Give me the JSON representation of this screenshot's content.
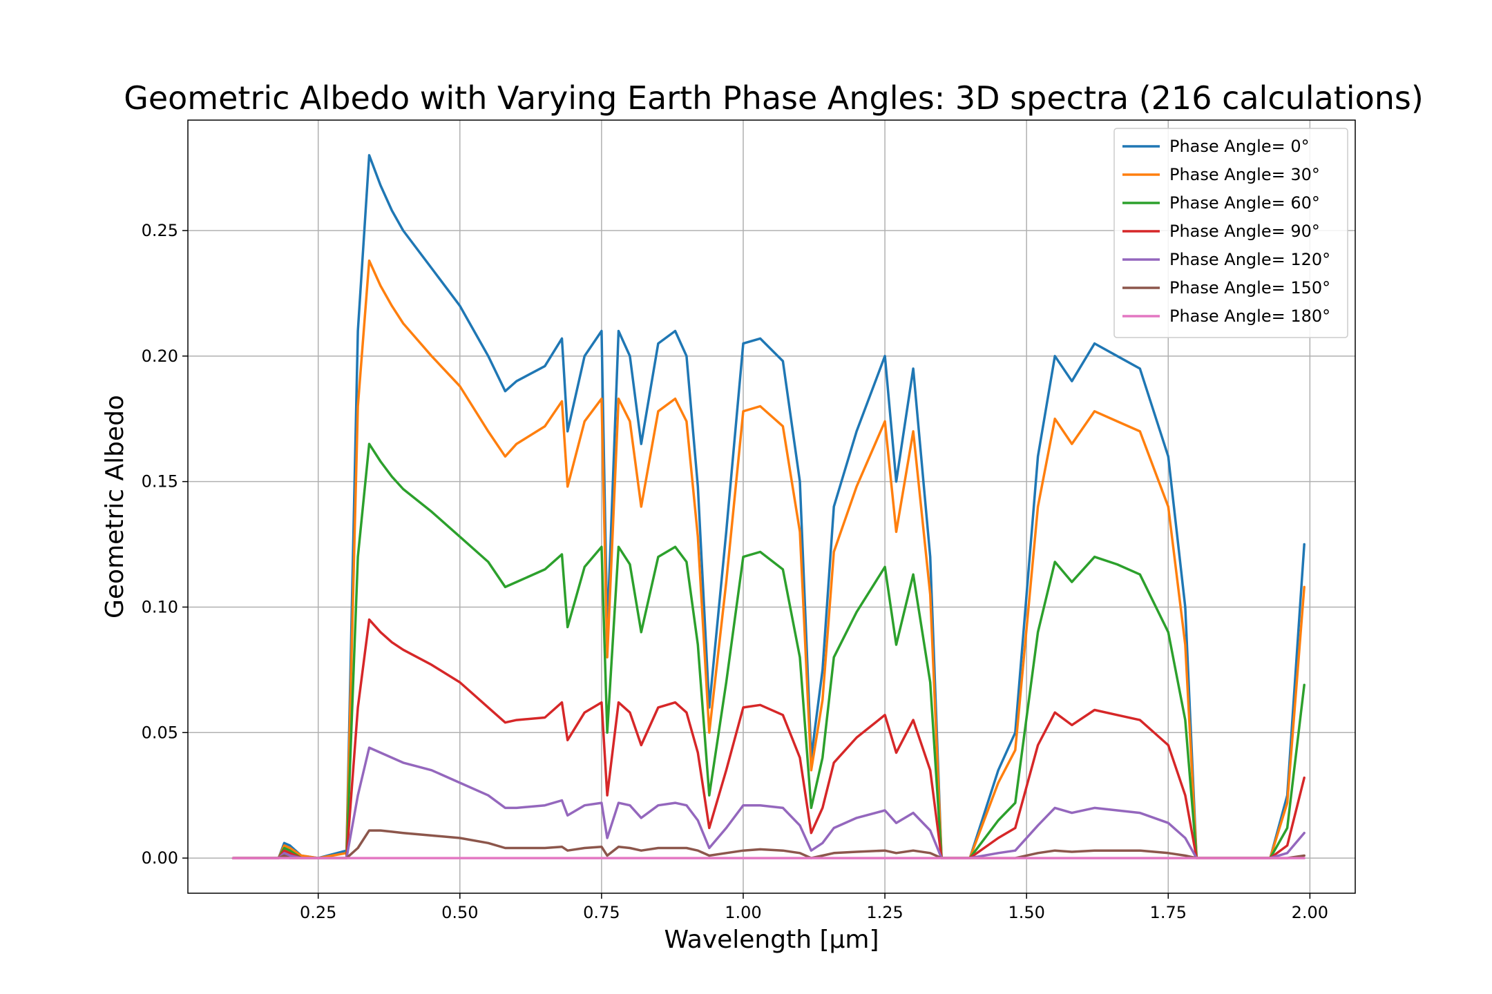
{
  "chart_data": {
    "type": "line",
    "title": "Geometric Albedo with Varying Earth Phase Angles: 3D spectra (216 calculations)",
    "xlabel": "Wavelength [μm]",
    "ylabel": "Geometric Albedo",
    "xlim": [
      0.02,
      2.08
    ],
    "ylim": [
      -0.014,
      0.294
    ],
    "xticks": [
      0.25,
      0.5,
      0.75,
      1.0,
      1.25,
      1.5,
      1.75,
      2.0
    ],
    "xtick_labels": [
      "0.25",
      "0.50",
      "0.75",
      "1.00",
      "1.25",
      "1.50",
      "1.75",
      "2.00"
    ],
    "yticks": [
      0.0,
      0.05,
      0.1,
      0.15,
      0.2,
      0.25
    ],
    "ytick_labels": [
      "0.00",
      "0.05",
      "0.10",
      "0.15",
      "0.20",
      "0.25"
    ],
    "grid": true,
    "legend_position": "top-right",
    "x": [
      0.1,
      0.18,
      0.19,
      0.2,
      0.22,
      0.25,
      0.3,
      0.32,
      0.34,
      0.36,
      0.38,
      0.4,
      0.45,
      0.5,
      0.55,
      0.58,
      0.6,
      0.65,
      0.68,
      0.69,
      0.72,
      0.75,
      0.76,
      0.78,
      0.8,
      0.82,
      0.85,
      0.88,
      0.9,
      0.92,
      0.94,
      0.97,
      1.0,
      1.03,
      1.07,
      1.1,
      1.12,
      1.14,
      1.16,
      1.2,
      1.25,
      1.27,
      1.3,
      1.33,
      1.35,
      1.4,
      1.45,
      1.48,
      1.52,
      1.55,
      1.58,
      1.62,
      1.66,
      1.7,
      1.75,
      1.78,
      1.8,
      1.82,
      1.85,
      1.9,
      1.93,
      1.96,
      1.99
    ],
    "series": [
      {
        "name": "Phase Angle= 0°",
        "color": "#1f77b4",
        "values": [
          0.0,
          0.0,
          0.006,
          0.005,
          0.001,
          0.0,
          0.003,
          0.21,
          0.28,
          0.268,
          0.258,
          0.25,
          0.235,
          0.22,
          0.2,
          0.186,
          0.19,
          0.196,
          0.207,
          0.17,
          0.2,
          0.21,
          0.09,
          0.21,
          0.2,
          0.165,
          0.205,
          0.21,
          0.2,
          0.148,
          0.06,
          0.13,
          0.205,
          0.207,
          0.198,
          0.15,
          0.04,
          0.075,
          0.14,
          0.17,
          0.2,
          0.15,
          0.195,
          0.12,
          0.0,
          0.0,
          0.035,
          0.05,
          0.16,
          0.2,
          0.19,
          0.205,
          0.2,
          0.195,
          0.16,
          0.1,
          0.0,
          0.0,
          0.0,
          0.0,
          0.0,
          0.025,
          0.125
        ]
      },
      {
        "name": "Phase Angle= 30°",
        "color": "#ff7f0e",
        "values": [
          0.0,
          0.0,
          0.005,
          0.004,
          0.001,
          0.0,
          0.002,
          0.18,
          0.238,
          0.228,
          0.22,
          0.213,
          0.2,
          0.188,
          0.17,
          0.16,
          0.165,
          0.172,
          0.182,
          0.148,
          0.174,
          0.183,
          0.08,
          0.183,
          0.174,
          0.14,
          0.178,
          0.183,
          0.174,
          0.128,
          0.05,
          0.11,
          0.178,
          0.18,
          0.172,
          0.13,
          0.035,
          0.063,
          0.122,
          0.148,
          0.174,
          0.13,
          0.17,
          0.105,
          0.0,
          0.0,
          0.03,
          0.043,
          0.14,
          0.175,
          0.165,
          0.178,
          0.174,
          0.17,
          0.14,
          0.085,
          0.0,
          0.0,
          0.0,
          0.0,
          0.0,
          0.022,
          0.108
        ]
      },
      {
        "name": "Phase Angle= 60°",
        "color": "#2ca02c",
        "values": [
          0.0,
          0.0,
          0.004,
          0.003,
          0.0,
          0.0,
          0.0,
          0.12,
          0.165,
          0.158,
          0.152,
          0.147,
          0.138,
          0.128,
          0.118,
          0.108,
          0.11,
          0.115,
          0.121,
          0.092,
          0.116,
          0.124,
          0.05,
          0.124,
          0.117,
          0.09,
          0.12,
          0.124,
          0.118,
          0.085,
          0.025,
          0.07,
          0.12,
          0.122,
          0.115,
          0.08,
          0.02,
          0.04,
          0.08,
          0.098,
          0.116,
          0.085,
          0.113,
          0.07,
          0.0,
          0.0,
          0.015,
          0.022,
          0.09,
          0.118,
          0.11,
          0.12,
          0.117,
          0.113,
          0.09,
          0.055,
          0.0,
          0.0,
          0.0,
          0.0,
          0.0,
          0.012,
          0.069
        ]
      },
      {
        "name": "Phase Angle= 90°",
        "color": "#d62728",
        "values": [
          0.0,
          0.0,
          0.003,
          0.002,
          0.0,
          0.0,
          0.0,
          0.06,
          0.095,
          0.09,
          0.086,
          0.083,
          0.077,
          0.07,
          0.06,
          0.054,
          0.055,
          0.056,
          0.062,
          0.047,
          0.058,
          0.062,
          0.025,
          0.062,
          0.058,
          0.045,
          0.06,
          0.062,
          0.058,
          0.042,
          0.012,
          0.035,
          0.06,
          0.061,
          0.057,
          0.04,
          0.01,
          0.02,
          0.038,
          0.048,
          0.057,
          0.042,
          0.055,
          0.035,
          0.0,
          0.0,
          0.008,
          0.012,
          0.045,
          0.058,
          0.053,
          0.059,
          0.057,
          0.055,
          0.045,
          0.025,
          0.0,
          0.0,
          0.0,
          0.0,
          0.0,
          0.005,
          0.032
        ]
      },
      {
        "name": "Phase Angle= 120°",
        "color": "#9467bd",
        "values": [
          0.0,
          0.0,
          0.002,
          0.001,
          0.0,
          0.0,
          0.0,
          0.025,
          0.044,
          0.042,
          0.04,
          0.038,
          0.035,
          0.03,
          0.025,
          0.02,
          0.02,
          0.021,
          0.023,
          0.017,
          0.021,
          0.022,
          0.008,
          0.022,
          0.021,
          0.016,
          0.021,
          0.022,
          0.021,
          0.015,
          0.004,
          0.012,
          0.021,
          0.021,
          0.02,
          0.013,
          0.003,
          0.006,
          0.012,
          0.016,
          0.019,
          0.014,
          0.018,
          0.011,
          0.0,
          0.0,
          0.002,
          0.003,
          0.013,
          0.02,
          0.018,
          0.02,
          0.019,
          0.018,
          0.014,
          0.008,
          0.0,
          0.0,
          0.0,
          0.0,
          0.0,
          0.002,
          0.01
        ]
      },
      {
        "name": "Phase Angle= 150°",
        "color": "#8c564b",
        "values": [
          0.0,
          0.0,
          0.001,
          0.0,
          0.0,
          0.0,
          0.0,
          0.004,
          0.011,
          0.011,
          0.0105,
          0.01,
          0.009,
          0.008,
          0.006,
          0.004,
          0.004,
          0.004,
          0.0045,
          0.003,
          0.004,
          0.0045,
          0.001,
          0.0045,
          0.004,
          0.003,
          0.004,
          0.004,
          0.004,
          0.003,
          0.001,
          0.002,
          0.003,
          0.0035,
          0.003,
          0.002,
          0.0,
          0.001,
          0.002,
          0.0025,
          0.003,
          0.002,
          0.003,
          0.002,
          0.0,
          0.0,
          0.0,
          0.0,
          0.002,
          0.003,
          0.0025,
          0.003,
          0.003,
          0.003,
          0.002,
          0.001,
          0.0,
          0.0,
          0.0,
          0.0,
          0.0,
          0.0,
          0.001
        ]
      },
      {
        "name": "Phase Angle= 180°",
        "color": "#e377c2",
        "values": [
          0.0,
          0.0,
          0.0,
          0.0,
          0.0,
          0.0,
          0.0,
          0.0,
          0.0,
          0.0,
          0.0,
          0.0,
          0.0,
          0.0,
          0.0,
          0.0,
          0.0,
          0.0,
          0.0,
          0.0,
          0.0,
          0.0,
          0.0,
          0.0,
          0.0,
          0.0,
          0.0,
          0.0,
          0.0,
          0.0,
          0.0,
          0.0,
          0.0,
          0.0,
          0.0,
          0.0,
          0.0,
          0.0,
          0.0,
          0.0,
          0.0,
          0.0,
          0.0,
          0.0,
          0.0,
          0.0,
          0.0,
          0.0,
          0.0,
          0.0,
          0.0,
          0.0,
          0.0,
          0.0,
          0.0,
          0.0,
          0.0,
          0.0,
          0.0,
          0.0,
          0.0,
          0.0,
          0.0
        ]
      }
    ]
  }
}
